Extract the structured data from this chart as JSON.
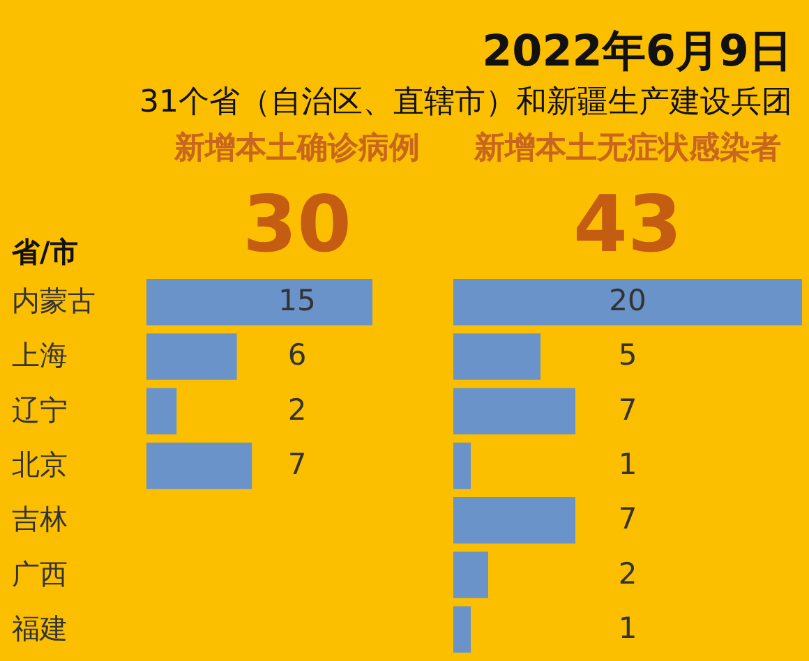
{
  "chart_data": [
    {
      "type": "other",
      "title": "2022年6月9日",
      "subtitle": "31个省（自治区、直辖市）和新疆生产建设兵团"
    },
    {
      "type": "bar",
      "orientation": "horizontal",
      "title": "新增本土确诊病例",
      "subtitle": "30",
      "ylabel": "省/市",
      "categories": [
        "内蒙古",
        "上海",
        "辽宁",
        "北京",
        "吉林",
        "广西",
        "福建"
      ],
      "values": [
        15,
        6,
        2,
        7,
        null,
        null,
        null
      ],
      "color": "#6a93c9",
      "data_labels": true,
      "tick_labels": "y"
    },
    {
      "type": "bar",
      "orientation": "horizontal",
      "title": "新增本土无症状感染者",
      "subtitle": "43",
      "categories": [
        null,
        null,
        null,
        null,
        null,
        null,
        null
      ],
      "values": [
        20,
        5,
        7,
        1,
        7,
        2,
        1
      ],
      "color": "#6a93c9",
      "data_labels": true,
      "tick_labels": false
    }
  ]
}
